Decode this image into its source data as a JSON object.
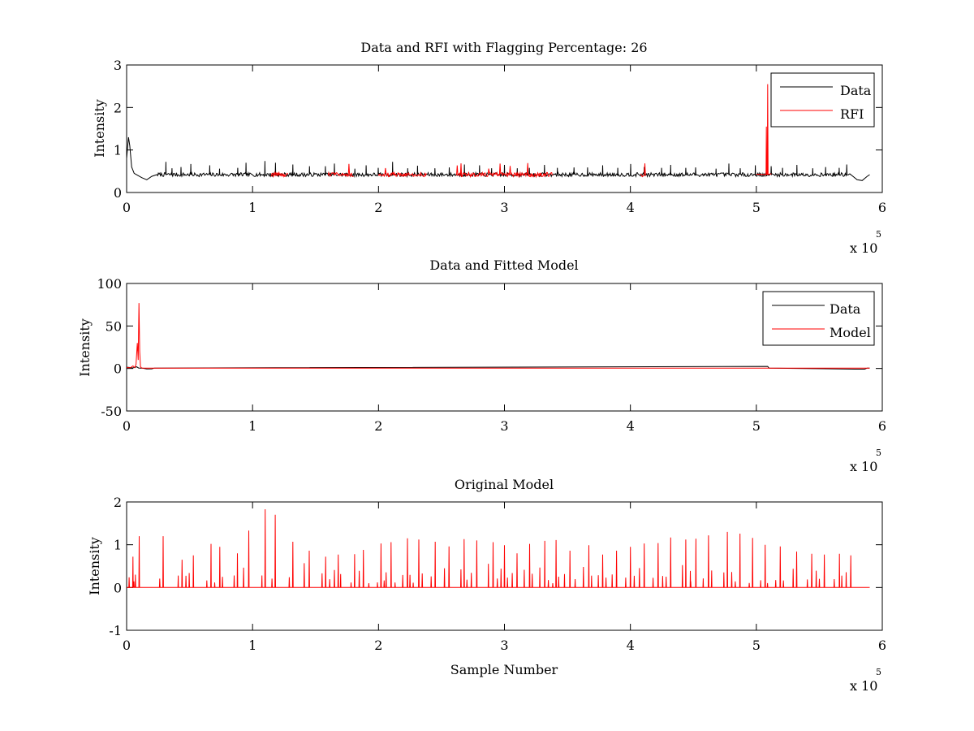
{
  "figure": {
    "background": "#ffffff",
    "colors": {
      "data": "#000000",
      "rfi": "#ff0000",
      "model": "#ff0000",
      "axes": "#000000"
    }
  },
  "chart_data": [
    {
      "type": "line",
      "title": "Data and RFI with Flagging Percentage: 26",
      "xlabel": "",
      "ylabel": "Intensity",
      "xlim": [
        0,
        600000
      ],
      "ylim": [
        0,
        3
      ],
      "xticks": [
        0,
        1,
        2,
        3,
        4,
        5,
        6
      ],
      "yticks": [
        0,
        1,
        2,
        3
      ],
      "x_exponent": {
        "base": "x 10",
        "power": "5"
      },
      "grid": false,
      "legend_position": "top-right",
      "legend": [
        "Data",
        "RFI"
      ],
      "series": [
        {
          "name": "Data",
          "color": "#000000",
          "baseline": 0.42,
          "x_end": 590000,
          "start_bump": [
            [
              0,
              0.8
            ],
            [
              1500,
              1.3
            ],
            [
              2500,
              1.1
            ],
            [
              4000,
              0.6
            ],
            [
              6000,
              0.45
            ],
            [
              9000,
              0.4
            ],
            [
              12000,
              0.35
            ],
            [
              16000,
              0.3
            ],
            [
              20000,
              0.38
            ],
            [
              24000,
              0.42
            ]
          ],
          "end_dip": [
            [
              575000,
              0.42
            ],
            [
              580000,
              0.3
            ],
            [
              584000,
              0.28
            ],
            [
              588000,
              0.38
            ],
            [
              590000,
              0.42
            ]
          ],
          "spike_x": [
            10000,
            24000,
            31000,
            36000,
            43000,
            51000,
            66000,
            74000,
            88000,
            95000,
            110000,
            118000,
            132000,
            145000,
            158000,
            165000,
            181000,
            190000,
            200000,
            211000,
            223000,
            231000,
            245000,
            256000,
            268000,
            280000,
            290000,
            300000,
            310000,
            320000,
            332000,
            342000,
            355000,
            366000,
            378000,
            390000,
            400000,
            411000,
            425000,
            432000,
            444000,
            452000,
            468000,
            478000,
            487000,
            499000,
            512000,
            521000,
            532000,
            545000,
            555000,
            566000,
            572000
          ],
          "spike_h": [
            0.2,
            0.22,
            0.3,
            0.15,
            0.18,
            0.25,
            0.22,
            0.14,
            0.16,
            0.28,
            0.32,
            0.28,
            0.24,
            0.2,
            0.2,
            0.26,
            0.14,
            0.22,
            0.16,
            0.3,
            0.15,
            0.21,
            0.15,
            0.17,
            0.24,
            0.22,
            0.15,
            0.23,
            0.15,
            0.16,
            0.23,
            0.16,
            0.17,
            0.17,
            0.22,
            0.16,
            0.25,
            0.18,
            0.16,
            0.23,
            0.16,
            0.17,
            0.14,
            0.26,
            0.15,
            0.22,
            0.2,
            0.16,
            0.23,
            0.15,
            0.18,
            0.16,
            0.24
          ]
        },
        {
          "name": "RFI",
          "color": "#ff0000",
          "segments": [
            [
              115000,
              128000
            ],
            [
              160000,
              180000
            ],
            [
              200000,
              238000
            ],
            [
              262000,
              338000
            ],
            [
              408000,
              412000
            ]
          ],
          "spikes": [
            [
              509000,
              2.55
            ],
            [
              508000,
              1.55
            ]
          ]
        }
      ]
    },
    {
      "type": "line",
      "title": "Data and Fitted Model",
      "xlabel": "",
      "ylabel": "Intensity",
      "xlim": [
        0,
        600000
      ],
      "ylim": [
        -50,
        100
      ],
      "xticks": [
        0,
        1,
        2,
        3,
        4,
        5,
        6
      ],
      "yticks": [
        -50,
        0,
        50,
        100
      ],
      "x_exponent": {
        "base": "x 10",
        "power": "5"
      },
      "grid": false,
      "legend_position": "top-right",
      "legend": [
        "Data",
        "Model"
      ],
      "series": [
        {
          "name": "Data",
          "color": "#000000",
          "x_end": 590000,
          "baseline": 0.4,
          "features": [
            [
              0,
              1.5
            ],
            [
              2000,
              1.2
            ],
            [
              5000,
              0.6
            ],
            [
              8000,
              2
            ],
            [
              9500,
              0.5
            ],
            [
              13000,
              0.3
            ],
            [
              16000,
              -0.5
            ],
            [
              20000,
              -0.4
            ],
            [
              22000,
              0.4
            ],
            [
              509000,
              2.5
            ],
            [
              510000,
              0.4
            ],
            [
              578000,
              -0.8
            ],
            [
              586000,
              -0.8
            ],
            [
              588000,
              0.4
            ]
          ]
        },
        {
          "name": "Model",
          "color": "#ff0000",
          "x_end": 590000,
          "baseline": 0.4,
          "features": [
            [
              0,
              1.0
            ],
            [
              3000,
              0.8
            ],
            [
              5000,
              3
            ],
            [
              6500,
              1
            ],
            [
              7500,
              5
            ],
            [
              8500,
              30
            ],
            [
              9200,
              10
            ],
            [
              9800,
              77
            ],
            [
              10400,
              20
            ],
            [
              11000,
              2
            ],
            [
              12000,
              0.5
            ],
            [
              15000,
              0.4
            ]
          ]
        }
      ]
    },
    {
      "type": "line",
      "title": "Original Model",
      "xlabel": "Sample Number",
      "ylabel": "Intensity",
      "xlim": [
        0,
        600000
      ],
      "ylim": [
        -1,
        2
      ],
      "xticks": [
        0,
        1,
        2,
        3,
        4,
        5,
        6
      ],
      "yticks": [
        -1,
        0,
        1,
        2
      ],
      "x_exponent": {
        "base": "x 10",
        "power": "5"
      },
      "grid": false,
      "series": [
        {
          "name": "Model",
          "color": "#ff0000",
          "x_end": 590000,
          "baseline": 0,
          "spikes_x": [
            5000,
            10000,
            29000,
            44000,
            53000,
            67000,
            74000,
            88000,
            97000,
            110000,
            118000,
            132000,
            145000,
            158000,
            168000,
            181000,
            188000,
            202000,
            210000,
            223000,
            232000,
            245000,
            256000,
            268000,
            278000,
            291000,
            300000,
            310000,
            320000,
            332000,
            341000,
            352000,
            367000,
            378000,
            389000,
            400000,
            411000,
            422000,
            432000,
            444000,
            452000,
            462000,
            477000,
            487000,
            497000,
            507000,
            519000,
            532000,
            544000,
            554000,
            566000,
            575000
          ],
          "spikes_h": [
            0.72,
            1.2,
            1.2,
            0.65,
            0.75,
            1.02,
            0.95,
            0.8,
            1.33,
            1.83,
            1.7,
            1.07,
            0.86,
            0.72,
            0.77,
            0.78,
            0.88,
            1.03,
            1.06,
            1.15,
            1.12,
            1.07,
            0.96,
            1.13,
            1.1,
            1.06,
            0.99,
            0.8,
            1.02,
            1.09,
            1.11,
            0.86,
            0.99,
            0.77,
            0.86,
            0.95,
            1.03,
            1.04,
            1.17,
            1.12,
            1.14,
            1.22,
            1.3,
            1.26,
            1.16,
            1.0,
            0.96,
            0.84,
            0.79,
            0.77,
            0.79,
            0.75
          ]
        }
      ]
    }
  ]
}
